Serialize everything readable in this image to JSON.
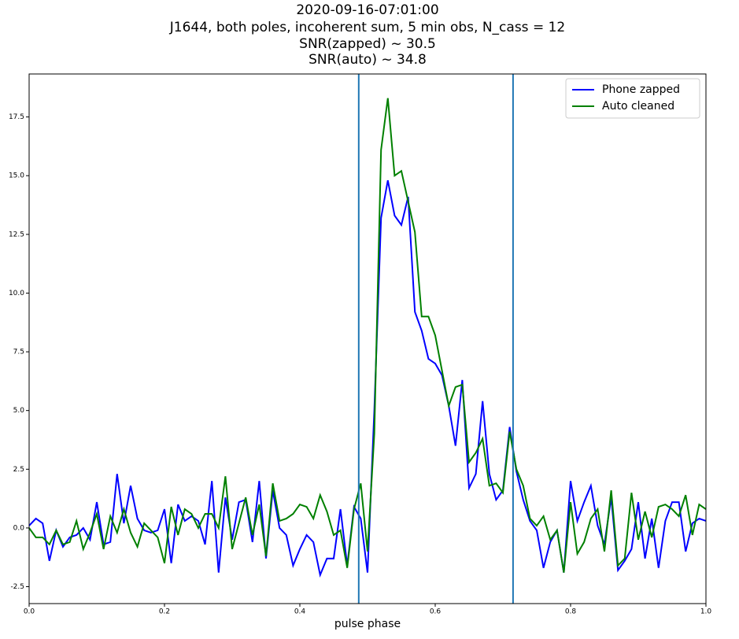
{
  "chart_data": {
    "type": "line",
    "title": [
      "2020-09-16-07:01:00",
      "J1644, both poles, incoherent sum, 5 min obs, N_cass = 12",
      "SNR(zapped) ~ 30.5",
      "SNR(auto) ~ 34.8"
    ],
    "x_label": "pulse phase",
    "x": [
      0,
      0.01,
      0.02,
      0.03,
      0.04,
      0.05,
      0.06,
      0.07,
      0.08,
      0.09,
      0.1,
      0.11,
      0.12,
      0.13,
      0.14,
      0.15,
      0.16,
      0.17,
      0.18,
      0.19,
      0.2,
      0.21,
      0.22,
      0.23,
      0.24,
      0.25,
      0.26,
      0.27,
      0.28,
      0.29,
      0.3,
      0.31,
      0.32,
      0.33,
      0.34,
      0.35,
      0.36,
      0.37,
      0.38,
      0.39,
      0.4,
      0.41,
      0.42,
      0.43,
      0.44,
      0.45,
      0.46,
      0.47,
      0.48,
      0.49,
      0.5,
      0.51,
      0.52,
      0.53,
      0.54,
      0.55,
      0.56,
      0.57,
      0.58,
      0.59,
      0.6,
      0.61,
      0.62,
      0.63,
      0.64,
      0.65,
      0.66,
      0.67,
      0.68,
      0.69,
      0.7,
      0.71,
      0.72,
      0.73,
      0.74,
      0.75,
      0.76,
      0.77,
      0.78,
      0.79,
      0.8,
      0.81,
      0.82,
      0.83,
      0.84,
      0.85,
      0.86,
      0.87,
      0.88,
      0.89,
      0.9,
      0.91,
      0.92,
      0.93,
      0.94,
      0.95,
      0.96,
      0.97,
      0.98,
      0.99,
      1
    ],
    "series": [
      {
        "name": "Phone zapped",
        "color": "#0000ff",
        "values": [
          0.1,
          0.4,
          0.2,
          -1.4,
          -0.1,
          -0.8,
          -0.4,
          -0.3,
          0.0,
          -0.5,
          1.1,
          -0.7,
          -0.6,
          2.3,
          0.2,
          1.8,
          0.4,
          -0.1,
          -0.2,
          -0.1,
          0.8,
          -1.5,
          1.0,
          0.3,
          0.5,
          0.3,
          -0.7,
          2.0,
          -1.9,
          1.3,
          -0.5,
          1.1,
          1.2,
          -0.6,
          2.0,
          -1.3,
          1.6,
          0.0,
          -0.3,
          -1.6,
          -0.9,
          -0.3,
          -0.6,
          -2.0,
          -1.3,
          -1.3,
          0.8,
          -1.6,
          0.9,
          0.4,
          -1.9,
          5.0,
          13.2,
          14.8,
          13.3,
          12.9,
          14.1,
          9.2,
          8.4,
          7.2,
          7.0,
          6.5,
          5.2,
          3.5,
          6.3,
          1.7,
          2.3,
          5.4,
          2.3,
          1.2,
          1.6,
          4.3,
          2.4,
          1.2,
          0.3,
          -0.1,
          -1.7,
          -0.6,
          -0.1,
          -1.9,
          2.0,
          0.3,
          1.1,
          1.8,
          0.1,
          -0.7,
          1.3,
          -1.8,
          -1.4,
          -0.9,
          1.1,
          -1.3,
          0.4,
          -1.7,
          0.3,
          1.1,
          1.1,
          -1.0,
          0.2,
          0.4,
          0.3
        ]
      },
      {
        "name": "Auto cleaned",
        "color": "#008000",
        "values": [
          0.0,
          -0.4,
          -0.4,
          -0.7,
          -0.1,
          -0.7,
          -0.6,
          0.3,
          -0.9,
          -0.2,
          0.6,
          -0.9,
          0.5,
          -0.2,
          0.8,
          -0.2,
          -0.8,
          0.2,
          -0.1,
          -0.4,
          -1.5,
          0.9,
          -0.3,
          0.8,
          0.6,
          0.0,
          0.6,
          0.6,
          0.0,
          2.2,
          -0.9,
          0.2,
          1.3,
          -0.3,
          1.0,
          -1.2,
          1.9,
          0.3,
          0.4,
          0.6,
          1.0,
          0.9,
          0.4,
          1.4,
          0.7,
          -0.3,
          -0.1,
          -1.7,
          0.8,
          1.9,
          -1.0,
          4.0,
          16.1,
          18.3,
          15.0,
          15.2,
          13.9,
          12.6,
          9.0,
          9.0,
          8.2,
          6.7,
          5.2,
          6.0,
          6.1,
          2.8,
          3.2,
          3.8,
          1.8,
          1.9,
          1.5,
          4.1,
          2.5,
          1.8,
          0.4,
          0.1,
          0.5,
          -0.5,
          -0.1,
          -1.9,
          1.1,
          -1.1,
          -0.6,
          0.4,
          0.8,
          -1.0,
          1.6,
          -1.6,
          -1.3,
          1.5,
          -0.5,
          0.7,
          -0.4,
          0.9,
          1.0,
          0.8,
          0.5,
          1.4,
          -0.3,
          1.0,
          0.8
        ]
      }
    ],
    "vlines": [
      0.487,
      0.715
    ],
    "vline_color": "#1f77b4",
    "xlim": [
      0,
      1
    ],
    "xticks": [
      {
        "value": 0,
        "label": "0.0"
      },
      0.2,
      0.4,
      0.6,
      0.8,
      {
        "value": 1,
        "label": "1.0"
      }
    ],
    "ylim": [
      -3.22,
      19.33
    ],
    "yticks": [
      -2.5,
      {
        "value": 0,
        "label": "0.0"
      },
      2.5,
      {
        "value": 5,
        "label": "5.0"
      },
      7.5,
      {
        "value": 10,
        "label": "10.0"
      },
      12.5,
      {
        "value": 15,
        "label": "15.0"
      },
      17.5
    ],
    "legend": "upper right"
  }
}
